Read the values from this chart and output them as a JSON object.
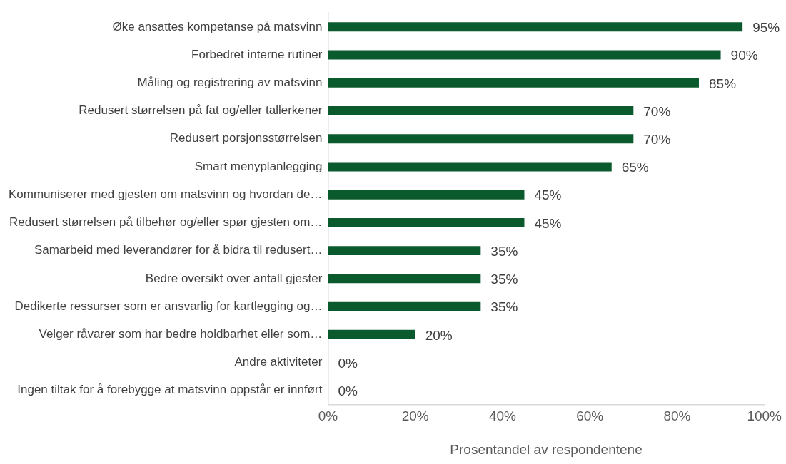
{
  "chart_data": {
    "type": "bar",
    "orientation": "horizontal",
    "xlabel": "Prosentandel av respondentene",
    "categories": [
      "Øke ansattes kompetanse på matsvinn",
      "Forbedret interne rutiner",
      "Måling og registrering av matsvinn",
      "Redusert størrelsen på fat og/eller tallerkener",
      "Redusert porsjonsstørrelsen",
      "Smart menyplanlegging",
      "Kommuniserer med gjesten om matsvinn og hvordan de…",
      "Redusert størrelsen på tilbehør og/eller spør gjesten om…",
      "Samarbeid med leverandører for å bidra til redusert…",
      "Bedre oversikt over antall gjester",
      "Dedikerte ressurser som er ansvarlig for kartlegging og…",
      "Velger råvarer som har bedre holdbarhet eller som…",
      "Andre aktiviteter",
      "Ingen tiltak for å forebygge at matsvinn oppstår er innført"
    ],
    "values": [
      95,
      90,
      85,
      70,
      70,
      65,
      45,
      45,
      35,
      35,
      35,
      20,
      0,
      0
    ],
    "value_labels": [
      "95%",
      "90%",
      "85%",
      "70%",
      "70%",
      "65%",
      "45%",
      "45%",
      "35%",
      "35%",
      "35%",
      "20%",
      "0%",
      "0%"
    ],
    "color": "#0b5a2e",
    "xlim": [
      0,
      100
    ],
    "xticks": [
      {
        "value": 0,
        "label": "0%"
      },
      {
        "value": 20,
        "label": "20%"
      },
      {
        "value": 40,
        "label": "40%"
      },
      {
        "value": 60,
        "label": "60%"
      },
      {
        "value": 80,
        "label": "80%"
      },
      {
        "value": 100,
        "label": "100%"
      }
    ],
    "grid": false,
    "legend": false
  }
}
